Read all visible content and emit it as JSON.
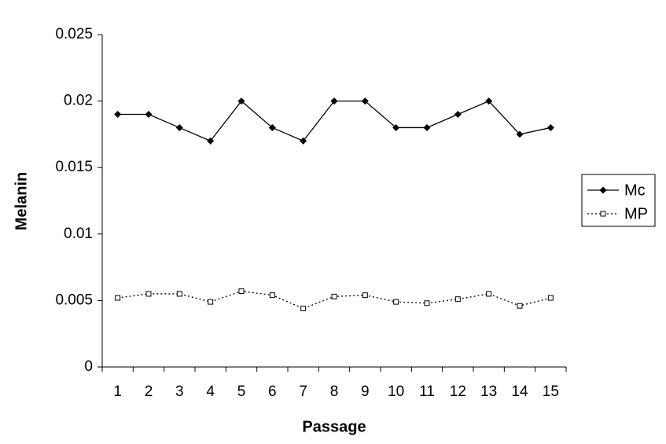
{
  "chart_data": {
    "type": "line",
    "x_label": "Passage",
    "y_label": "Melanin",
    "categories": [
      "1",
      "2",
      "3",
      "4",
      "5",
      "6",
      "7",
      "8",
      "9",
      "10",
      "11",
      "12",
      "13",
      "14",
      "15"
    ],
    "series": [
      {
        "name": "Mc",
        "color": "#000000",
        "line_style": "solid",
        "marker": "diamond",
        "values": [
          0.019,
          0.019,
          0.018,
          0.017,
          0.02,
          0.018,
          0.017,
          0.02,
          0.02,
          0.018,
          0.018,
          0.019,
          0.02,
          0.0175,
          0.018
        ]
      },
      {
        "name": "MP",
        "color": "#000000",
        "line_style": "dotted",
        "marker": "square",
        "values": [
          0.0052,
          0.0055,
          0.0055,
          0.0049,
          0.0057,
          0.0054,
          0.0044,
          0.0053,
          0.0054,
          0.0049,
          0.0048,
          0.0051,
          0.0055,
          0.0046,
          0.0052
        ]
      }
    ],
    "ylim": [
      0,
      0.025
    ],
    "yticks": [
      0,
      0.005,
      0.01,
      0.015,
      0.02,
      0.025
    ],
    "grid": false,
    "legend": "right"
  }
}
